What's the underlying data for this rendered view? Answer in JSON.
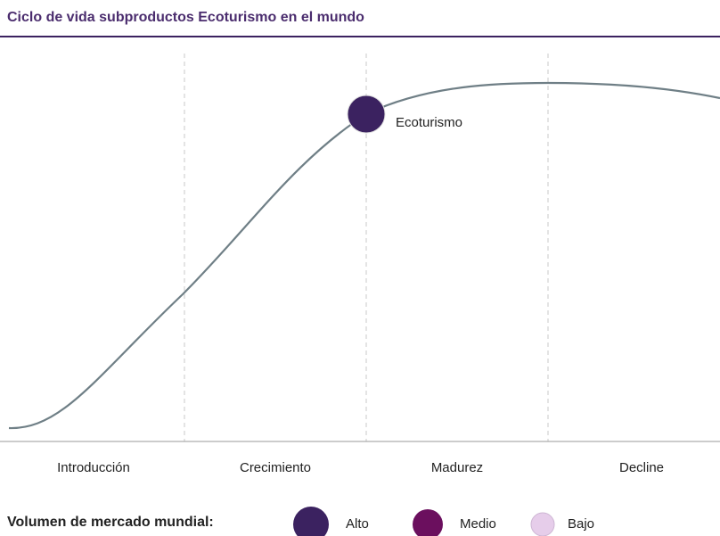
{
  "header": {
    "title": "Ciclo de vida subproductos Ecoturismo en el mundo"
  },
  "stages": [
    "Introducción",
    "Crecimiento",
    "Madurez",
    "Decline"
  ],
  "product": {
    "label": "Ecoturismo"
  },
  "legend": {
    "title": "Volumen de mercado mundial:",
    "items": [
      "Alto",
      "Medio",
      "Bajo"
    ]
  }
}
